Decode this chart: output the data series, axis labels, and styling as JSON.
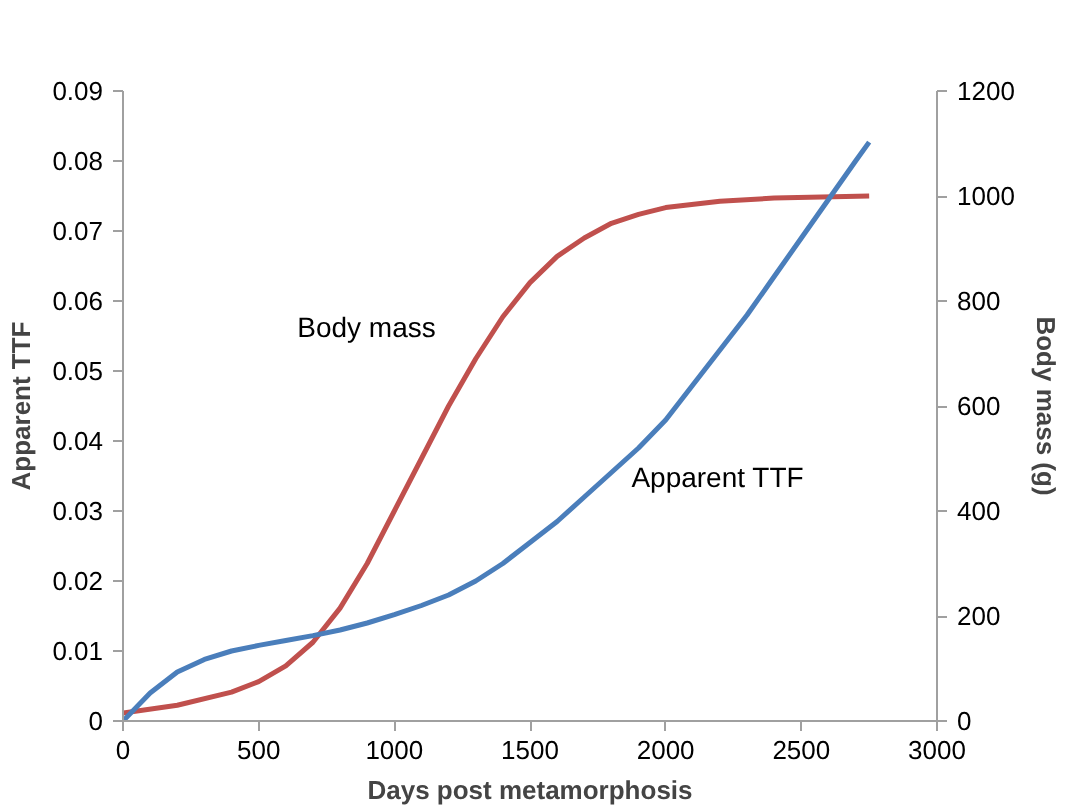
{
  "chart_data": {
    "type": "line",
    "xlabel": "Days post metamorphosis",
    "ylabel": "Apparent TTF",
    "y2label": "Body mass (g)",
    "xlim": [
      0,
      3000
    ],
    "xticks": [
      0,
      500,
      1000,
      1500,
      2000,
      2500,
      3000
    ],
    "ylim": [
      0,
      0.09
    ],
    "yticks": [
      {
        "value": 0,
        "label": "0"
      },
      0.01,
      0.02,
      0.03,
      0.04,
      0.05,
      0.06,
      0.07,
      0.08,
      0.09
    ],
    "y2lim": [
      0,
      1200
    ],
    "y2ticks": [
      0,
      200,
      400,
      600,
      800,
      1000,
      1200
    ],
    "grid": false,
    "legend": false,
    "series": [
      {
        "name": "Body mass",
        "color": "#c0504d",
        "axis": "y2",
        "x": [
          0,
          200,
          400,
          500,
          600,
          700,
          800,
          900,
          1000,
          1100,
          1200,
          1300,
          1400,
          1500,
          1600,
          1700,
          1800,
          1900,
          2000,
          2200,
          2400,
          2750
        ],
        "values": [
          15,
          30,
          55,
          75,
          105,
          150,
          215,
          300,
          400,
          500,
          600,
          690,
          770,
          835,
          885,
          920,
          948,
          965,
          978,
          990,
          996,
          1000
        ]
      },
      {
        "name": "Apparent TTF",
        "color": "#4a7ebb",
        "x": [
          0,
          100,
          200,
          300,
          400,
          500,
          600,
          700,
          800,
          900,
          1000,
          1100,
          1200,
          1300,
          1400,
          1500,
          1600,
          1700,
          1800,
          1900,
          2000,
          2100,
          2200,
          2300,
          2400,
          2500,
          2600,
          2700,
          2750
        ],
        "values": [
          0,
          0.004,
          0.007,
          0.0088,
          0.01,
          0.0108,
          0.0115,
          0.0122,
          0.013,
          0.014,
          0.0152,
          0.0165,
          0.018,
          0.02,
          0.0225,
          0.0255,
          0.0285,
          0.032,
          0.0355,
          0.039,
          0.043,
          0.048,
          0.053,
          0.058,
          0.0635,
          0.069,
          0.0745,
          0.08,
          0.0827
        ]
      }
    ]
  }
}
